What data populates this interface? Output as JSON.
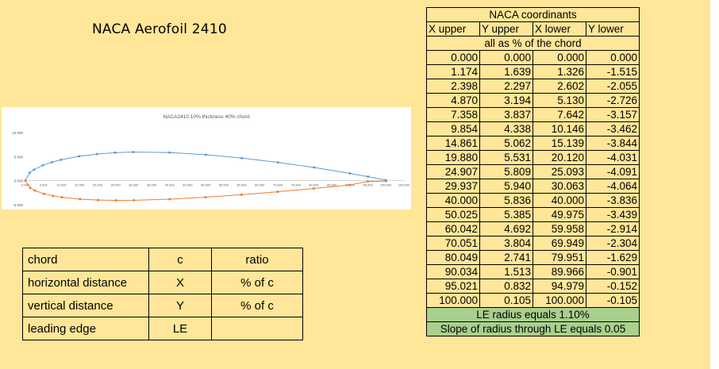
{
  "title": "NACA Aerofoil 2410",
  "chart": {
    "title": "NACA2410 10% thickness 40% chord",
    "y_ticks": [
      "10.000",
      "5.000",
      "0.000",
      "-5.000"
    ],
    "x_ticks": [
      "0.000",
      "5.000",
      "10.000",
      "15.000",
      "20.000",
      "25.000",
      "30.000",
      "35.000",
      "40.000",
      "45.000",
      "50.000",
      "55.000",
      "60.000",
      "65.000",
      "70.000",
      "75.000",
      "80.000",
      "85.000",
      "90.000",
      "95.000",
      "100.000",
      "105.000"
    ],
    "colors": {
      "upper": "#5b9bd5",
      "lower": "#ed7d31"
    }
  },
  "chart_data": {
    "type": "scatter",
    "title": "NACA2410 10% thickness 40% chord",
    "xlabel": "",
    "ylabel": "",
    "xlim": [
      0,
      105
    ],
    "ylim": [
      -5,
      10
    ],
    "grid": false,
    "series": [
      {
        "x": [
          0.0,
          1.174,
          2.398,
          4.87,
          7.358,
          9.854,
          14.861,
          19.88,
          24.907,
          29.937,
          40.0,
          50.025,
          60.042,
          70.051,
          80.049,
          90.034,
          95.021,
          100.0
        ],
        "y": [
          0.0,
          1.639,
          2.297,
          3.194,
          3.837,
          4.338,
          5.062,
          5.531,
          5.809,
          5.94,
          5.836,
          5.385,
          4.692,
          3.804,
          2.741,
          1.513,
          0.832,
          0.105
        ]
      },
      {
        "x": [
          0.0,
          1.326,
          2.602,
          5.13,
          7.642,
          10.146,
          15.139,
          20.12,
          25.093,
          30.063,
          40.0,
          49.975,
          59.958,
          69.949,
          79.951,
          89.966,
          94.979,
          100.0
        ],
        "y": [
          0.0,
          -1.515,
          -2.055,
          -2.726,
          -3.157,
          -3.462,
          -3.844,
          -4.031,
          -4.091,
          -4.064,
          -3.836,
          -3.439,
          -2.914,
          -2.304,
          -1.629,
          -0.901,
          -0.152,
          -0.105
        ]
      }
    ]
  },
  "legend_table": [
    {
      "name": "chord",
      "symbol": "c",
      "unit": "ratio"
    },
    {
      "name": "horizontal distance",
      "symbol": "X",
      "unit": "% of c"
    },
    {
      "name": "vertical distance",
      "symbol": "Y",
      "unit": "% of c"
    },
    {
      "name": "leading edge",
      "symbol": "LE",
      "unit": ""
    }
  ],
  "coords": {
    "title": "NACA coordinants",
    "headers": [
      "X upper",
      "Y upper",
      "X lower",
      "Y lower"
    ],
    "subtitle": "all as % of the chord",
    "rows": [
      [
        "0.000",
        "0.000",
        "0.000",
        "0.000"
      ],
      [
        "1.174",
        "1.639",
        "1.326",
        "-1.515"
      ],
      [
        "2.398",
        "2.297",
        "2.602",
        "-2.055"
      ],
      [
        "4.870",
        "3.194",
        "5.130",
        "-2.726"
      ],
      [
        "7.358",
        "3.837",
        "7.642",
        "-3.157"
      ],
      [
        "9.854",
        "4.338",
        "10.146",
        "-3.462"
      ],
      [
        "14.861",
        "5.062",
        "15.139",
        "-3.844"
      ],
      [
        "19.880",
        "5.531",
        "20.120",
        "-4.031"
      ],
      [
        "24.907",
        "5.809",
        "25.093",
        "-4.091"
      ],
      [
        "29.937",
        "5.940",
        "30.063",
        "-4.064"
      ],
      [
        "40.000",
        "5.836",
        "40.000",
        "-3.836"
      ],
      [
        "50.025",
        "5.385",
        "49.975",
        "-3.439"
      ],
      [
        "60.042",
        "4.692",
        "59.958",
        "-2.914"
      ],
      [
        "70.051",
        "3.804",
        "69.949",
        "-2.304"
      ],
      [
        "80.049",
        "2.741",
        "79.951",
        "-1.629"
      ],
      [
        "90.034",
        "1.513",
        "89.966",
        "-0.901"
      ],
      [
        "95.021",
        "0.832",
        "94.979",
        "-0.152"
      ],
      [
        "100.000",
        "0.105",
        "100.000",
        "-0.105"
      ]
    ],
    "notes": [
      "LE radius equals 1.10%",
      "Slope of radius through LE equals 0.05"
    ]
  }
}
